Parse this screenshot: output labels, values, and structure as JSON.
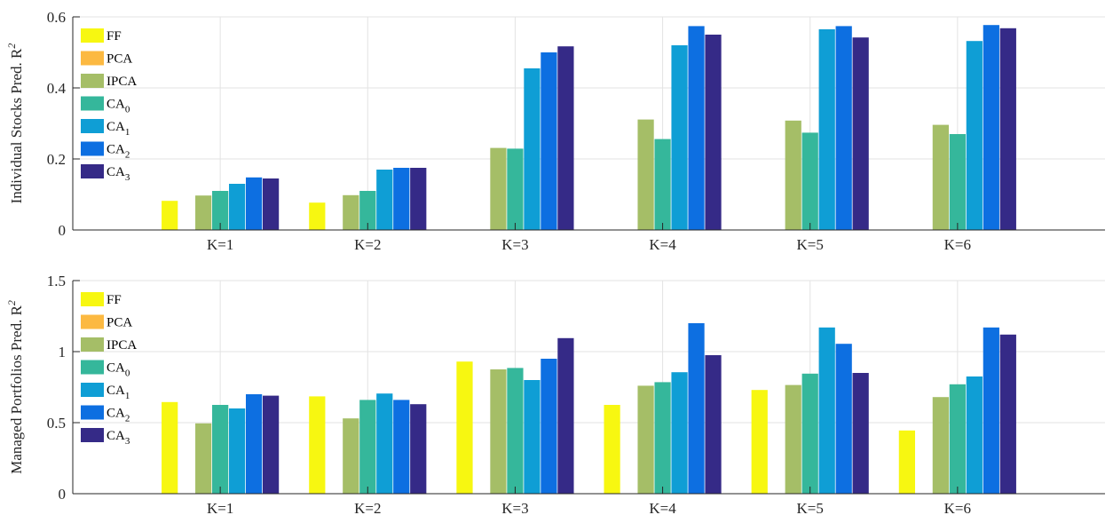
{
  "colors": {
    "FF": "#F7F711",
    "PCA": "#FCB941",
    "IPCA": "#A5BE67",
    "CA0": "#35B79B",
    "CA1": "#0F9ED5",
    "CA2": "#0D6FE1",
    "CA3": "#352A87"
  },
  "chart_data": [
    {
      "type": "bar",
      "ylabel": "Individual Stocks Pred. R",
      "ylabel_sup": "2",
      "ylim": [
        0,
        0.6
      ],
      "yticks": [
        "0",
        "0.2",
        "0.4",
        "0.6"
      ],
      "ytick_values": [
        0,
        0.2,
        0.4,
        0.6
      ],
      "grid": true,
      "legend_position": "top-left",
      "categories": [
        "K=1",
        "K=2",
        "K=3",
        "K=4",
        "K=5",
        "K=6"
      ],
      "series": [
        {
          "name": "FF",
          "label": "FF",
          "sub": "",
          "color_key": "FF",
          "values": [
            0.082,
            0.077,
            0.001,
            0.001,
            0.001,
            0.001
          ]
        },
        {
          "name": "PCA",
          "label": "PCA",
          "sub": "",
          "color_key": "PCA",
          "values": [
            0,
            0,
            0,
            0,
            0,
            0
          ]
        },
        {
          "name": "IPCA",
          "label": "IPCA",
          "sub": "",
          "color_key": "IPCA",
          "values": [
            0.097,
            0.098,
            0.231,
            0.311,
            0.308,
            0.296
          ]
        },
        {
          "name": "CA0",
          "label": "CA",
          "sub": "0",
          "color_key": "CA0",
          "values": [
            0.11,
            0.11,
            0.229,
            0.256,
            0.274,
            0.27
          ]
        },
        {
          "name": "CA1",
          "label": "CA",
          "sub": "1",
          "color_key": "CA1",
          "values": [
            0.13,
            0.17,
            0.455,
            0.52,
            0.565,
            0.532
          ]
        },
        {
          "name": "CA2",
          "label": "CA",
          "sub": "2",
          "color_key": "CA2",
          "values": [
            0.148,
            0.175,
            0.5,
            0.574,
            0.574,
            0.577
          ]
        },
        {
          "name": "CA3",
          "label": "CA",
          "sub": "3",
          "color_key": "CA3",
          "values": [
            0.145,
            0.175,
            0.517,
            0.55,
            0.542,
            0.568
          ]
        }
      ]
    },
    {
      "type": "bar",
      "ylabel": "Managed Portfolios Pred. R",
      "ylabel_sup": "2",
      "ylim": [
        0,
        1.5
      ],
      "yticks": [
        "0",
        "0.5",
        "1",
        "1.5"
      ],
      "ytick_values": [
        0,
        0.5,
        1,
        1.5
      ],
      "grid": true,
      "legend_position": "top-left",
      "categories": [
        "K=1",
        "K=2",
        "K=3",
        "K=4",
        "K=5",
        "K=6"
      ],
      "series": [
        {
          "name": "FF",
          "label": "FF",
          "sub": "",
          "color_key": "FF",
          "values": [
            0.645,
            0.685,
            0.93,
            0.625,
            0.73,
            0.445
          ]
        },
        {
          "name": "PCA",
          "label": "PCA",
          "sub": "",
          "color_key": "PCA",
          "values": [
            0,
            0,
            0,
            0,
            0,
            0
          ]
        },
        {
          "name": "IPCA",
          "label": "IPCA",
          "sub": "",
          "color_key": "IPCA",
          "values": [
            0.495,
            0.53,
            0.875,
            0.76,
            0.765,
            0.68
          ]
        },
        {
          "name": "CA0",
          "label": "CA",
          "sub": "0",
          "color_key": "CA0",
          "values": [
            0.625,
            0.66,
            0.885,
            0.785,
            0.845,
            0.77
          ]
        },
        {
          "name": "CA1",
          "label": "CA",
          "sub": "1",
          "color_key": "CA1",
          "values": [
            0.6,
            0.705,
            0.8,
            0.855,
            1.17,
            0.825
          ]
        },
        {
          "name": "CA2",
          "label": "CA",
          "sub": "2",
          "color_key": "CA2",
          "values": [
            0.7,
            0.66,
            0.95,
            1.2,
            1.055,
            1.17
          ]
        },
        {
          "name": "CA3",
          "label": "CA",
          "sub": "3",
          "color_key": "CA3",
          "values": [
            0.69,
            0.63,
            1.095,
            0.975,
            0.85,
            1.12
          ]
        }
      ]
    }
  ]
}
